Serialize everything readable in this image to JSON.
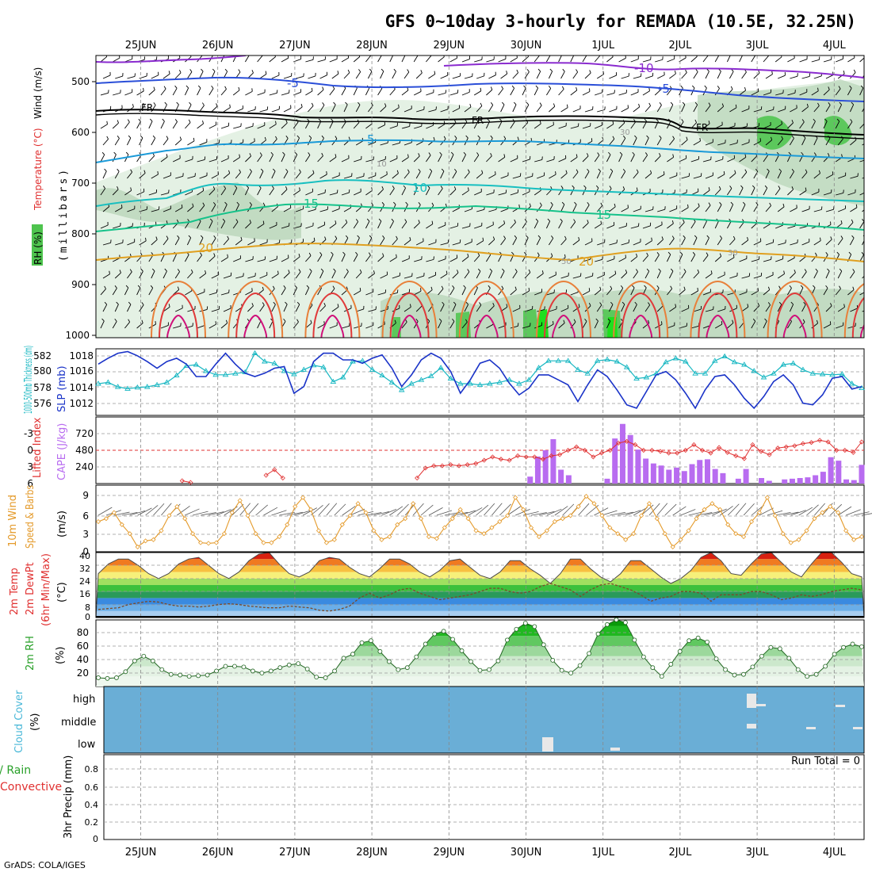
{
  "chart_data": {
    "type": "meteogram",
    "title": "GFS 0~10day 3-hourly for REMADA (10.5E, 32.25N)",
    "footer": "GrADS: COLA/IGES",
    "date_labels": [
      "25JUN",
      "26JUN",
      "27JUN",
      "28JUN",
      "29JUN",
      "30JUN",
      "1JUL",
      "2JUL",
      "3JUL",
      "4JUL"
    ],
    "panel1": {
      "ylabel": "(millibars)",
      "legend": [
        "RH (%)",
        "Temperature (°C)",
        "Wind (m/s)"
      ],
      "pressure_ticks": [
        "500",
        "600",
        "700",
        "800",
        "900",
        "1000"
      ],
      "contour_labels": [
        "-10",
        "-5",
        "FR",
        "5",
        "10",
        "15",
        "20"
      ],
      "rh_labels": [
        "30",
        "10",
        "50",
        "30"
      ]
    },
    "panel2": {
      "ylabel_left": "1000-500mb Thickness (dm)",
      "ylabel_right": "SLP (mb)",
      "thick_ticks": [
        "582",
        "580",
        "578",
        "576"
      ],
      "slp_ticks": [
        "1018",
        "1016",
        "1014",
        "1012"
      ],
      "thickness": [
        577.0,
        577.2,
        576.5,
        576.2,
        576.4,
        576.5,
        576.8,
        577.2,
        578.3,
        579.8,
        580.0,
        579.0,
        578.4,
        578.4,
        578.6,
        578.8,
        581.8,
        580.5,
        580.2,
        579.0,
        578.5,
        579.2,
        579.9,
        579.6,
        577.3,
        578.0,
        580.5,
        580.6,
        579.2,
        578.3,
        577.2,
        576.0,
        577.0,
        577.6,
        578.2,
        579.5,
        577.8,
        577.0,
        577.0,
        576.8,
        577.0,
        577.2,
        577.6,
        577.0,
        577.6,
        579.5,
        580.6,
        580.6,
        580.6,
        579.2,
        578.6,
        580.6,
        580.8,
        580.5,
        579.6,
        577.8,
        578.0,
        578.6,
        580.4,
        581.0,
        580.5,
        578.6,
        578.6,
        580.6,
        581.3,
        580.4,
        580.0,
        579.0,
        578.0,
        578.6,
        580.0,
        580.2,
        579.2,
        578.6,
        578.5,
        578.4,
        578.5,
        577.0,
        576.3
      ],
      "slp": [
        1016.5,
        1017.2,
        1017.8,
        1018.0,
        1017.5,
        1016.8,
        1016.0,
        1016.8,
        1017.2,
        1016.5,
        1015.0,
        1015.0,
        1016.5,
        1017.8,
        1016.5,
        1015.4,
        1015.0,
        1015.4,
        1016.0,
        1016.2,
        1013.0,
        1013.8,
        1016.8,
        1017.8,
        1017.8,
        1017.0,
        1017.0,
        1016.6,
        1017.2,
        1017.6,
        1016.0,
        1013.8,
        1015.2,
        1017.0,
        1017.8,
        1017.2,
        1015.6,
        1013.0,
        1014.6,
        1016.6,
        1017.0,
        1016.0,
        1014.2,
        1012.8,
        1013.6,
        1015.2,
        1015.2,
        1014.6,
        1014.0,
        1012.0,
        1014.0,
        1015.8,
        1015.0,
        1013.4,
        1011.6,
        1011.2,
        1013.2,
        1015.2,
        1015.6,
        1014.6,
        1013.0,
        1011.2,
        1013.4,
        1015.0,
        1015.2,
        1014.0,
        1012.4,
        1011.2,
        1012.6,
        1014.4,
        1015.2,
        1014.0,
        1011.8,
        1011.6,
        1012.8,
        1014.8,
        1015.0,
        1013.5,
        1013.8
      ]
    },
    "panel3": {
      "ylabel_left": "Lifted Index",
      "ylabel_right": "CAPE (J/kg)",
      "li_ticks": [
        "-3",
        "0",
        "3",
        "6"
      ],
      "cape_ticks": [
        "720",
        "480",
        "240"
      ],
      "lifted_index": [
        null,
        null,
        null,
        null,
        null,
        null,
        null,
        null,
        null,
        null,
        5.5,
        5.8,
        null,
        null,
        null,
        null,
        null,
        null,
        null,
        null,
        4.5,
        3.5,
        5.0,
        null,
        null,
        null,
        null,
        null,
        null,
        null,
        null,
        null,
        null,
        null,
        null,
        null,
        null,
        null,
        5.0,
        3.2,
        2.8,
        2.8,
        2.6,
        2.8,
        2.6,
        2.4,
        1.8,
        1.2,
        1.6,
        1.8,
        1.0,
        1.2,
        1.2,
        1.6,
        1.0,
        0.8,
        0.0,
        -0.6,
        0.0,
        1.2,
        0.5,
        0.0,
        -1.3,
        -1.6,
        -1.0,
        0.0,
        0.0,
        0.2,
        0.5,
        0.5,
        0.0,
        -1.0,
        0.0,
        0.5,
        -0.5,
        0.4,
        1.0,
        1.5,
        -1.0,
        0.2,
        0.8,
        -0.4,
        -0.6,
        -0.8,
        -1.2,
        -1.4,
        -1.8,
        -1.5,
        0.0,
        0.0,
        0.4,
        -1.5
      ],
      "cape": [
        0,
        0,
        0,
        0,
        0,
        0,
        0,
        0,
        0,
        0,
        0,
        0,
        0,
        0,
        0,
        0,
        0,
        0,
        0,
        0,
        0,
        0,
        0,
        0,
        0,
        0,
        0,
        0,
        0,
        0,
        0,
        0,
        0,
        0,
        0,
        0,
        0,
        0,
        0,
        0,
        0,
        0,
        0,
        0,
        0,
        0,
        0,
        0,
        0,
        0,
        0,
        0,
        0,
        0,
        0,
        0,
        100,
        390,
        480,
        640,
        200,
        120,
        0,
        0,
        0,
        0,
        70,
        650,
        860,
        700,
        490,
        360,
        290,
        260,
        200,
        230,
        180,
        280,
        340,
        350,
        210,
        150,
        0,
        70,
        210,
        0,
        80,
        40,
        0,
        60,
        70,
        80,
        90,
        120,
        170,
        380,
        330,
        60,
        50,
        270
      ]
    },
    "panel4": {
      "ylabel_left": "10m Wind",
      "ylabel_mid": "Speed & Barbs",
      "ylabel_right": "(m/s)",
      "ticks": [
        "9",
        "6",
        "3",
        "0"
      ],
      "speed": [
        5.0,
        5.5,
        6.5,
        4.5,
        3.0,
        0.8,
        1.8,
        2.0,
        3.5,
        6.0,
        7.5,
        5.5,
        3.0,
        1.5,
        1.4,
        1.5,
        3.0,
        6.5,
        8.5,
        6.0,
        3.0,
        1.5,
        1.5,
        2.5,
        4.5,
        7.5,
        9.0,
        7.0,
        3.5,
        1.5,
        2.0,
        4.5,
        6.0,
        8.0,
        6.5,
        3.5,
        2.0,
        2.5,
        4.5,
        5.5,
        8.0,
        5.5,
        2.5,
        2.2,
        4.0,
        5.5,
        7.0,
        5.5,
        3.5,
        3.0,
        4.0,
        5.0,
        6.0,
        9.0,
        7.0,
        4.0,
        2.5,
        3.5,
        5.0,
        5.5,
        6.0,
        7.5,
        9.2,
        8.0,
        6.0,
        4.0,
        3.0,
        2.0,
        3.0,
        6.0,
        8.0,
        5.5,
        3.0,
        0.8,
        2.0,
        3.5,
        5.5,
        7.0,
        8.0,
        7.0,
        4.5,
        3.0,
        2.5,
        5.0,
        6.5,
        9.0,
        6.0,
        3.0,
        1.5,
        2.0,
        3.5,
        5.5,
        6.5,
        7.5,
        6.5,
        3.5,
        2.0,
        2.5
      ]
    },
    "panel5": {
      "ylabel": [
        "2m Temp",
        "2m DewPt",
        "(6hr Min/Max)",
        "(°C)"
      ],
      "ticks": [
        "40",
        "32",
        "24",
        "16",
        "8",
        "0"
      ],
      "temp": [
        27,
        33,
        36,
        36,
        32,
        27,
        24,
        27,
        33,
        36,
        37,
        32,
        27,
        24,
        28,
        35,
        39,
        40,
        33,
        27,
        25,
        28,
        35,
        37,
        36,
        31,
        27,
        25,
        30,
        36,
        36,
        33,
        28,
        25,
        29,
        35,
        36,
        31,
        26,
        24,
        28,
        35,
        35,
        30,
        26,
        21,
        27,
        36,
        36,
        30,
        25,
        22,
        27,
        35,
        35,
        30,
        25,
        21,
        24,
        29,
        37,
        40,
        35,
        27,
        26,
        33,
        39,
        40,
        34,
        28,
        25,
        33,
        40,
        40,
        34,
        27,
        25
      ],
      "dewpt": [
        5.0,
        5.5,
        6.0,
        8.0,
        9.0,
        10.0,
        9.5,
        8.0,
        7.0,
        7.0,
        6.5,
        7.0,
        8.0,
        8.5,
        8.0,
        7.0,
        6.5,
        6.0,
        6.0,
        7.0,
        6.5,
        6.0,
        4.5,
        4.0,
        5.0,
        7.0,
        12.0,
        15.0,
        12.0,
        14.0,
        17.0,
        18.0,
        15.0,
        13.0,
        11.0,
        12.0,
        13.0,
        14.0,
        16.0,
        18.0,
        18.0,
        16.0,
        15.0,
        16.0,
        19.0,
        21.0,
        19.0,
        17.0,
        13.0,
        17.0,
        20.0,
        21.0,
        19.0,
        17.0,
        14.0,
        10.0,
        12.0,
        13.0,
        16.0,
        16.0,
        15.0,
        10.0,
        14.0,
        14.0,
        14.0,
        16.0,
        16.0,
        14.0,
        11.0,
        12.0,
        14.0,
        13.0,
        14.0,
        16.0,
        17.0,
        18.0,
        17.0
      ]
    },
    "panel6": {
      "ylabel": "2m RH",
      "unit": "(%)",
      "ticks": [
        "80",
        "60",
        "40",
        "20"
      ],
      "rh": [
        13,
        12,
        13,
        22,
        38,
        45,
        38,
        25,
        18,
        17,
        15,
        16,
        17,
        23,
        30,
        30,
        29,
        23,
        20,
        23,
        28,
        32,
        34,
        26,
        14,
        13,
        23,
        42,
        48,
        65,
        68,
        52,
        37,
        25,
        28,
        44,
        63,
        78,
        82,
        70,
        53,
        37,
        24,
        25,
        38,
        69,
        85,
        94,
        89,
        62,
        39,
        24,
        20,
        31,
        49,
        78,
        92,
        99,
        95,
        69,
        44,
        28,
        15,
        33,
        52,
        68,
        72,
        66,
        41,
        25,
        17,
        18,
        29,
        45,
        58,
        56,
        42,
        25,
        15,
        18,
        30,
        48,
        58,
        63,
        59
      ]
    },
    "panel7": {
      "ylabel": "Cloud Cover",
      "unit": "(%)",
      "levels": [
        "high",
        "middle",
        "low"
      ]
    },
    "panel8": {
      "ylabel_left": "Total / Rain",
      "ylabel_sub": "Convective",
      "ylabel_right": "3hr Precip (mm)",
      "ticks": [
        "0.8",
        "0.6",
        "0.4",
        "0.2",
        "0"
      ],
      "run_total": "Run Total = 0"
    },
    "colors": {
      "panel2_thickness": "#17b7c2",
      "panel2_slp": "#1a33c8",
      "cape_bar": "#b86cf0",
      "lifted_index": "#e03030",
      "wind_line": "#e49a2a",
      "rh_line": "#28a028",
      "cloud_bg": "#6aaed6",
      "temp_outline": "#4a4a4a"
    }
  }
}
